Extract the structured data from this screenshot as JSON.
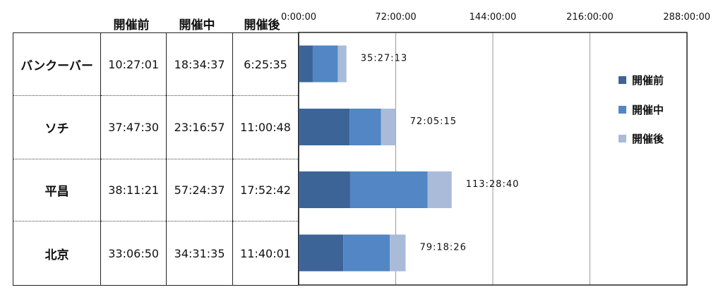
{
  "table": {
    "headers": [
      "開催前",
      "開催中",
      "開催後"
    ],
    "rows": [
      {
        "label": "バンクーバー",
        "values": [
          "10:27:01",
          "18:34:37",
          "6:25:35"
        ]
      },
      {
        "label": "ソチ",
        "values": [
          "37:47:30",
          "23:16:57",
          "11:00:48"
        ]
      },
      {
        "label": "平昌",
        "values": [
          "38:11:21",
          "57:24:37",
          "17:52:42"
        ]
      },
      {
        "label": "北京",
        "values": [
          "33:06:50",
          "34:31:35",
          "11:40:01"
        ]
      }
    ]
  },
  "chart_data": {
    "type": "bar",
    "orientation": "horizontal",
    "stacked": true,
    "categories": [
      "バンクーバー",
      "ソチ",
      "平昌",
      "北京"
    ],
    "series": [
      {
        "name": "開催前",
        "color": "#3d6497",
        "values": [
          10.4503,
          37.7917,
          38.1892,
          33.1139
        ]
      },
      {
        "name": "開催中",
        "color": "#5286c5",
        "values": [
          18.5769,
          23.2825,
          57.4103,
          34.5264
        ]
      },
      {
        "name": "開催後",
        "color": "#a9bbd9",
        "values": [
          6.4264,
          11.0133,
          17.8783,
          11.6669
        ]
      }
    ],
    "totals": [
      "35:27:13",
      "72:05:15",
      "113:28:40",
      "79:18:26"
    ],
    "xlim": [
      0,
      288
    ],
    "xticks": [
      0,
      72,
      144,
      216,
      288
    ],
    "xtick_labels": [
      "0:00:00",
      "72:00:00",
      "144:00:00",
      "216:00:00",
      "288:00:00"
    ],
    "grid": "vertical",
    "legend_position": "right",
    "title": "",
    "xlabel": "",
    "ylabel": ""
  }
}
